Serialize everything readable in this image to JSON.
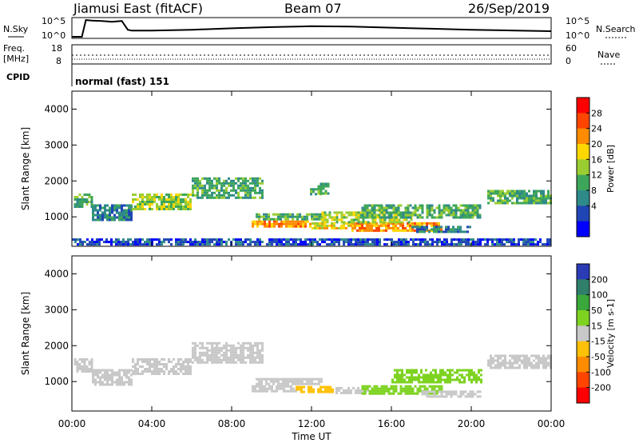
{
  "header": {
    "station": "Jiamusi East (fitACF)",
    "beam": "Beam 07",
    "date": "26/Sep/2019"
  },
  "summary_panels": {
    "nsky_label": "N.Sky",
    "nsearch_label": "N.Search",
    "noise_ticks": [
      "10^5",
      "10^0"
    ],
    "freq_label_1": "Freq.",
    "freq_label_2": "[MHz]",
    "freq_ticks": [
      "18",
      "8"
    ],
    "nave_label": "Nave",
    "nave_ticks": [
      "60",
      "0"
    ],
    "cpid_label": "CPID",
    "cpid_value": "normal (fast) 151"
  },
  "colors": {
    "power_scale": [
      "#0000ff",
      "#1f46b4",
      "#2f8a8a",
      "#3ea65a",
      "#9acd32",
      "#ffd700",
      "#ff8c00",
      "#ff4500",
      "#ff0000"
    ],
    "velocity_scale": [
      "#2a3bb5",
      "#2f7f6a",
      "#3aa83a",
      "#7ed321",
      "#c8c8c8",
      "#ffc107",
      "#ff8c00",
      "#ff4500",
      "#ff0000"
    ],
    "ground_scatter": "#c8c8c8"
  },
  "chart_data": [
    {
      "type": "line",
      "name": "noise",
      "xlim": [
        0,
        24
      ],
      "x_unit": "hours UT",
      "series": [
        {
          "name": "N.Sky",
          "x": [
            0.0,
            0.5,
            0.7,
            1.0,
            1.5,
            2.0,
            2.5,
            2.8,
            3.0,
            4.0,
            6.0,
            8.0,
            10.0,
            12.0,
            14.0,
            16.0,
            18.0,
            20.0,
            22.0,
            24.0
          ],
          "y_frac": [
            0.0,
            0.0,
            0.95,
            0.92,
            0.9,
            0.85,
            0.9,
            0.4,
            0.35,
            0.35,
            0.4,
            0.48,
            0.55,
            0.6,
            0.58,
            0.52,
            0.46,
            0.4,
            0.36,
            0.32
          ]
        }
      ]
    },
    {
      "type": "heatmap",
      "name": "power",
      "xlabel": "Time UT",
      "ylabel": "Slant Range [km]",
      "xlim": [
        0,
        24
      ],
      "ylim": [
        180,
        4500
      ],
      "x_ticks": [
        "00:00",
        "04:00",
        "08:00",
        "12:00",
        "16:00",
        "20:00",
        "00:00"
      ],
      "y_ticks": [
        "1000",
        "2000",
        "3000",
        "4000"
      ],
      "colorbar_label": "Power [dB]",
      "colorbar_ticks": [
        "4",
        "8",
        "12",
        "16",
        "20",
        "24",
        "28"
      ],
      "regions": [
        {
          "x": [
            0.1,
            1.0
          ],
          "r": [
            1300,
            1650
          ],
          "level": 3
        },
        {
          "x": [
            1.0,
            3.0
          ],
          "r": [
            900,
            1350
          ],
          "level": 2
        },
        {
          "x": [
            3.0,
            6.0
          ],
          "r": [
            1200,
            1650
          ],
          "level": 4
        },
        {
          "x": [
            6.0,
            9.5
          ],
          "r": [
            1500,
            2100
          ],
          "level": 3
        },
        {
          "x": [
            9.0,
            12.0
          ],
          "r": [
            700,
            900
          ],
          "level": 6
        },
        {
          "x": [
            12.0,
            14.0
          ],
          "r": [
            700,
            850
          ],
          "level": 5
        },
        {
          "x": [
            14.0,
            18.5
          ],
          "r": [
            600,
            850
          ],
          "level": 6
        },
        {
          "x": [
            9.2,
            12.5
          ],
          "r": [
            900,
            1100
          ],
          "level": 3
        },
        {
          "x": [
            12.5,
            17.0
          ],
          "r": [
            850,
            1150
          ],
          "level": 4
        },
        {
          "x": [
            14.5,
            20.5
          ],
          "r": [
            1000,
            1350
          ],
          "level": 3
        },
        {
          "x": [
            17.0,
            20.0
          ],
          "r": [
            550,
            750
          ],
          "level": 2
        },
        {
          "x": [
            11.8,
            12.6
          ],
          "r": [
            1600,
            1800
          ],
          "level": 3
        },
        {
          "x": [
            12.3,
            12.8
          ],
          "r": [
            1650,
            1950
          ],
          "level": 3
        },
        {
          "x": [
            20.8,
            24.0
          ],
          "r": [
            1350,
            1750
          ],
          "level": 3
        },
        {
          "x": [
            0.0,
            24.0
          ],
          "r": [
            200,
            400
          ],
          "level": 1
        }
      ]
    },
    {
      "type": "heatmap",
      "name": "velocity",
      "xlabel": "Time UT",
      "ylabel": "Slant Range [km]",
      "xlim": [
        0,
        24
      ],
      "ylim": [
        180,
        4500
      ],
      "x_ticks": [
        "00:00",
        "04:00",
        "08:00",
        "12:00",
        "16:00",
        "20:00",
        "00:00"
      ],
      "y_ticks": [
        "1000",
        "2000",
        "3000",
        "4000"
      ],
      "colorbar_label": "Velocity [m s-1]",
      "colorbar_ticks": [
        "200",
        "100",
        "50",
        "15",
        "-15",
        "-50",
        "-100",
        "-200"
      ],
      "regions": [
        {
          "x": [
            0.1,
            1.0
          ],
          "r": [
            1300,
            1650
          ],
          "v": 0
        },
        {
          "x": [
            1.0,
            3.0
          ],
          "r": [
            900,
            1350
          ],
          "v": 0
        },
        {
          "x": [
            3.0,
            6.0
          ],
          "r": [
            1200,
            1650
          ],
          "v": 0
        },
        {
          "x": [
            6.0,
            9.5
          ],
          "r": [
            1500,
            2100
          ],
          "v": 0
        },
        {
          "x": [
            9.2,
            12.5
          ],
          "r": [
            900,
            1100
          ],
          "v": 0
        },
        {
          "x": [
            9.0,
            11.2
          ],
          "r": [
            700,
            900
          ],
          "v": 0
        },
        {
          "x": [
            11.2,
            13.2
          ],
          "r": [
            680,
            880
          ],
          "v": -40
        },
        {
          "x": [
            13.2,
            14.8
          ],
          "r": [
            650,
            850
          ],
          "v": 0
        },
        {
          "x": [
            14.5,
            18.5
          ],
          "r": [
            650,
            900
          ],
          "v": 30
        },
        {
          "x": [
            16.0,
            20.5
          ],
          "r": [
            1000,
            1350
          ],
          "v": 30
        },
        {
          "x": [
            17.5,
            20.5
          ],
          "r": [
            550,
            750
          ],
          "v": 0
        },
        {
          "x": [
            20.8,
            24.0
          ],
          "r": [
            1350,
            1750
          ],
          "v": 0
        }
      ]
    }
  ]
}
